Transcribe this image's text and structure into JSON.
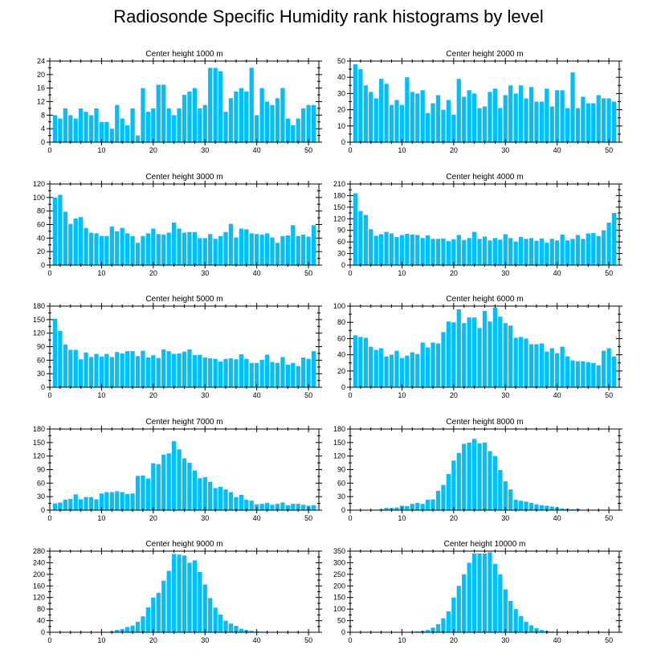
{
  "title": "Radiosonde Specific Humidity rank histograms by level",
  "colors": {
    "bar": "#00bfff",
    "axis": "#000000"
  },
  "chart_data": [
    {
      "type": "bar",
      "title": "Center height 1000 m",
      "xlim": [
        0,
        52
      ],
      "ylim": [
        0,
        24
      ],
      "yticks": [
        0,
        4,
        8,
        12,
        16,
        20,
        24
      ],
      "xticks": [
        0,
        10,
        20,
        30,
        40,
        50
      ],
      "categories": [
        1,
        2,
        3,
        4,
        5,
        6,
        7,
        8,
        9,
        10,
        11,
        12,
        13,
        14,
        15,
        16,
        17,
        18,
        19,
        20,
        21,
        22,
        23,
        24,
        25,
        26,
        27,
        28,
        29,
        30,
        31,
        32,
        33,
        34,
        35,
        36,
        37,
        38,
        39,
        40,
        41,
        42,
        43,
        44,
        45,
        46,
        47,
        48,
        49,
        50,
        51
      ],
      "values": [
        8,
        7,
        10,
        8,
        7,
        10,
        9,
        8,
        10,
        6,
        6,
        4,
        11,
        7,
        5,
        10,
        2,
        16,
        9,
        10,
        17,
        17,
        10,
        8,
        10,
        14,
        15,
        16,
        10,
        11,
        22,
        22,
        21,
        9,
        13,
        15,
        16,
        15,
        22,
        8,
        16,
        12,
        11,
        13,
        16,
        7,
        5,
        7,
        10,
        11,
        11
      ]
    },
    {
      "type": "bar",
      "title": "Center height 2000 m",
      "xlim": [
        0,
        52
      ],
      "ylim": [
        0,
        50
      ],
      "yticks": [
        0,
        10,
        20,
        30,
        40,
        50
      ],
      "xticks": [
        0,
        10,
        20,
        30,
        40,
        50
      ],
      "categories": [
        1,
        2,
        3,
        4,
        5,
        6,
        7,
        8,
        9,
        10,
        11,
        12,
        13,
        14,
        15,
        16,
        17,
        18,
        19,
        20,
        21,
        22,
        23,
        24,
        25,
        26,
        27,
        28,
        29,
        30,
        31,
        32,
        33,
        34,
        35,
        36,
        37,
        38,
        39,
        40,
        41,
        42,
        43,
        44,
        45,
        46,
        47,
        48,
        49,
        50,
        51
      ],
      "values": [
        48,
        45,
        35,
        31,
        27,
        39,
        36,
        23,
        26,
        23,
        40,
        31,
        30,
        32,
        18,
        24,
        29,
        20,
        26,
        17,
        39,
        28,
        32,
        30,
        21,
        22,
        31,
        33,
        21,
        29,
        35,
        30,
        35,
        27,
        34,
        25,
        25,
        33,
        22,
        32,
        32,
        21,
        43,
        21,
        28,
        24,
        24,
        29,
        27,
        27,
        25
      ]
    },
    {
      "type": "bar",
      "title": "Center height 3000 m",
      "xlim": [
        0,
        52
      ],
      "ylim": [
        0,
        120
      ],
      "yticks": [
        0,
        20,
        40,
        60,
        80,
        100,
        120
      ],
      "xticks": [
        0,
        10,
        20,
        30,
        40,
        50
      ],
      "categories": [
        1,
        2,
        3,
        4,
        5,
        6,
        7,
        8,
        9,
        10,
        11,
        12,
        13,
        14,
        15,
        16,
        17,
        18,
        19,
        20,
        21,
        22,
        23,
        24,
        25,
        26,
        27,
        28,
        29,
        30,
        31,
        32,
        33,
        34,
        35,
        36,
        37,
        38,
        39,
        40,
        41,
        42,
        43,
        44,
        45,
        46,
        47,
        48,
        49,
        50,
        51
      ],
      "values": [
        100,
        104,
        79,
        61,
        69,
        71,
        55,
        48,
        47,
        43,
        43,
        57,
        50,
        55,
        47,
        43,
        33,
        43,
        47,
        54,
        46,
        45,
        48,
        63,
        54,
        48,
        49,
        49,
        40,
        40,
        46,
        39,
        43,
        49,
        61,
        41,
        54,
        53,
        47,
        46,
        45,
        47,
        41,
        33,
        43,
        44,
        59,
        43,
        45,
        42,
        59
      ]
    },
    {
      "type": "bar",
      "title": "Center height 4000 m",
      "xlim": [
        0,
        52
      ],
      "ylim": [
        0,
        210
      ],
      "yticks": [
        0,
        30,
        60,
        90,
        120,
        150,
        180,
        210
      ],
      "xticks": [
        0,
        10,
        20,
        30,
        40,
        50
      ],
      "categories": [
        1,
        2,
        3,
        4,
        5,
        6,
        7,
        8,
        9,
        10,
        11,
        12,
        13,
        14,
        15,
        16,
        17,
        18,
        19,
        20,
        21,
        22,
        23,
        24,
        25,
        26,
        27,
        28,
        29,
        30,
        31,
        32,
        33,
        34,
        35,
        36,
        37,
        38,
        39,
        40,
        41,
        42,
        43,
        44,
        45,
        46,
        47,
        48,
        49,
        50,
        51
      ],
      "values": [
        186,
        140,
        130,
        93,
        76,
        80,
        86,
        82,
        73,
        78,
        81,
        79,
        78,
        70,
        77,
        68,
        68,
        69,
        62,
        67,
        78,
        65,
        70,
        86,
        68,
        74,
        64,
        70,
        66,
        80,
        70,
        61,
        73,
        68,
        70,
        63,
        69,
        58,
        68,
        64,
        79,
        64,
        68,
        78,
        68,
        82,
        83,
        75,
        90,
        110,
        135
      ]
    },
    {
      "type": "bar",
      "title": "Center height 5000 m",
      "xlim": [
        0,
        52
      ],
      "ylim": [
        0,
        180
      ],
      "yticks": [
        0,
        30,
        60,
        90,
        120,
        150,
        180
      ],
      "xticks": [
        0,
        10,
        20,
        30,
        40,
        50
      ],
      "categories": [
        1,
        2,
        3,
        4,
        5,
        6,
        7,
        8,
        9,
        10,
        11,
        12,
        13,
        14,
        15,
        16,
        17,
        18,
        19,
        20,
        21,
        22,
        23,
        24,
        25,
        26,
        27,
        28,
        29,
        30,
        31,
        32,
        33,
        34,
        35,
        36,
        37,
        38,
        39,
        40,
        41,
        42,
        43,
        44,
        45,
        46,
        47,
        48,
        49,
        50,
        51
      ],
      "values": [
        152,
        125,
        95,
        83,
        83,
        62,
        77,
        67,
        74,
        68,
        74,
        67,
        78,
        75,
        80,
        80,
        69,
        81,
        66,
        71,
        65,
        84,
        80,
        74,
        75,
        79,
        84,
        71,
        72,
        66,
        64,
        63,
        57,
        63,
        64,
        62,
        73,
        63,
        54,
        54,
        61,
        72,
        56,
        54,
        67,
        50,
        54,
        47,
        66,
        63,
        80
      ]
    },
    {
      "type": "bar",
      "title": "Center height 6000 m",
      "xlim": [
        0,
        52
      ],
      "ylim": [
        0,
        100
      ],
      "yticks": [
        0,
        20,
        40,
        60,
        80,
        100
      ],
      "xticks": [
        0,
        10,
        20,
        30,
        40,
        50
      ],
      "categories": [
        1,
        2,
        3,
        4,
        5,
        6,
        7,
        8,
        9,
        10,
        11,
        12,
        13,
        14,
        15,
        16,
        17,
        18,
        19,
        20,
        21,
        22,
        23,
        24,
        25,
        26,
        27,
        28,
        29,
        30,
        31,
        32,
        33,
        34,
        35,
        36,
        37,
        38,
        39,
        40,
        41,
        42,
        43,
        44,
        45,
        46,
        47,
        48,
        49,
        50,
        51
      ],
      "values": [
        64,
        62,
        61,
        50,
        46,
        48,
        38,
        40,
        45,
        36,
        39,
        43,
        41,
        55,
        49,
        55,
        54,
        68,
        81,
        80,
        96,
        79,
        86,
        86,
        73,
        94,
        81,
        98,
        87,
        79,
        76,
        61,
        62,
        60,
        53,
        53,
        54,
        44,
        48,
        42,
        50,
        38,
        33,
        32,
        32,
        31,
        30,
        27,
        45,
        48,
        38
      ]
    },
    {
      "type": "bar",
      "title": "Center height 7000 m",
      "xlim": [
        0,
        52
      ],
      "ylim": [
        0,
        180
      ],
      "yticks": [
        0,
        30,
        60,
        90,
        120,
        150,
        180
      ],
      "xticks": [
        0,
        10,
        20,
        30,
        40,
        50
      ],
      "categories": [
        1,
        2,
        3,
        4,
        5,
        6,
        7,
        8,
        9,
        10,
        11,
        12,
        13,
        14,
        15,
        16,
        17,
        18,
        19,
        20,
        21,
        22,
        23,
        24,
        25,
        26,
        27,
        28,
        29,
        30,
        31,
        32,
        33,
        34,
        35,
        36,
        37,
        38,
        39,
        40,
        41,
        42,
        43,
        44,
        45,
        46,
        47,
        48,
        49,
        50,
        51
      ],
      "values": [
        15,
        17,
        23,
        25,
        35,
        24,
        29,
        29,
        24,
        37,
        40,
        40,
        42,
        40,
        36,
        37,
        76,
        77,
        70,
        104,
        102,
        123,
        126,
        153,
        135,
        115,
        105,
        88,
        71,
        73,
        63,
        49,
        52,
        46,
        40,
        29,
        34,
        23,
        21,
        13,
        14,
        16,
        12,
        14,
        17,
        11,
        14,
        14,
        12,
        10,
        11
      ]
    },
    {
      "type": "bar",
      "title": "Center height 8000 m",
      "xlim": [
        0,
        52
      ],
      "ylim": [
        0,
        180
      ],
      "yticks": [
        0,
        30,
        60,
        90,
        120,
        150,
        180
      ],
      "xticks": [
        0,
        10,
        20,
        30,
        40,
        50
      ],
      "categories": [
        1,
        2,
        3,
        4,
        5,
        6,
        7,
        8,
        9,
        10,
        11,
        12,
        13,
        14,
        15,
        16,
        17,
        18,
        19,
        20,
        21,
        22,
        23,
        24,
        25,
        26,
        27,
        28,
        29,
        30,
        31,
        32,
        33,
        34,
        35,
        36,
        37,
        38,
        39,
        40,
        41,
        42,
        43,
        44,
        45,
        46,
        47,
        48,
        49,
        50,
        51
      ],
      "values": [
        0,
        0,
        0,
        0,
        1,
        2,
        5,
        5,
        6,
        10,
        9,
        14,
        16,
        14,
        23,
        24,
        43,
        56,
        80,
        110,
        127,
        147,
        150,
        158,
        148,
        150,
        131,
        120,
        89,
        64,
        46,
        23,
        21,
        19,
        16,
        13,
        11,
        10,
        8,
        6,
        4,
        3,
        2,
        3,
        1,
        1,
        1,
        0,
        1,
        0,
        0
      ]
    },
    {
      "type": "bar",
      "title": "Center height 9000 m",
      "xlim": [
        0,
        52
      ],
      "ylim": [
        0,
        280
      ],
      "yticks": [
        0,
        40,
        80,
        120,
        160,
        200,
        240,
        280
      ],
      "xticks": [
        0,
        10,
        20,
        30,
        40,
        50
      ],
      "categories": [
        1,
        2,
        3,
        4,
        5,
        6,
        7,
        8,
        9,
        10,
        11,
        12,
        13,
        14,
        15,
        16,
        17,
        18,
        19,
        20,
        21,
        22,
        23,
        24,
        25,
        26,
        27,
        28,
        29,
        30,
        31,
        32,
        33,
        34,
        35,
        36,
        37,
        38,
        39,
        40,
        41,
        42,
        43,
        44,
        45,
        46,
        47,
        48,
        49,
        50,
        51
      ],
      "values": [
        0,
        0,
        0,
        0,
        0,
        0,
        0,
        0,
        0,
        0,
        1,
        3,
        8,
        11,
        18,
        23,
        36,
        55,
        86,
        120,
        136,
        178,
        212,
        270,
        268,
        265,
        240,
        248,
        208,
        165,
        118,
        85,
        61,
        40,
        30,
        22,
        12,
        8,
        5,
        3,
        2,
        1,
        1,
        1,
        0,
        0,
        0,
        0,
        0,
        0,
        0
      ]
    },
    {
      "type": "bar",
      "title": "Center height 10000 m",
      "xlim": [
        0,
        52
      ],
      "ylim": [
        0,
        350
      ],
      "yticks": [
        0,
        50,
        100,
        150,
        200,
        250,
        300,
        350
      ],
      "xticks": [
        0,
        10,
        20,
        30,
        40,
        50
      ],
      "categories": [
        1,
        2,
        3,
        4,
        5,
        6,
        7,
        8,
        9,
        10,
        11,
        12,
        13,
        14,
        15,
        16,
        17,
        18,
        19,
        20,
        21,
        22,
        23,
        24,
        25,
        26,
        27,
        28,
        29,
        30,
        31,
        32,
        33,
        34,
        35,
        36,
        37,
        38,
        39,
        40,
        41,
        42,
        43,
        44,
        45,
        46,
        47,
        48,
        49,
        50,
        51
      ],
      "values": [
        0,
        0,
        0,
        0,
        0,
        0,
        0,
        0,
        0,
        0,
        0,
        2,
        4,
        6,
        10,
        20,
        35,
        60,
        90,
        150,
        200,
        250,
        300,
        340,
        340,
        340,
        345,
        295,
        250,
        185,
        135,
        100,
        70,
        45,
        30,
        18,
        10,
        6,
        3,
        2,
        1,
        1,
        1,
        0,
        0,
        0,
        0,
        0,
        0,
        0,
        0
      ]
    }
  ]
}
